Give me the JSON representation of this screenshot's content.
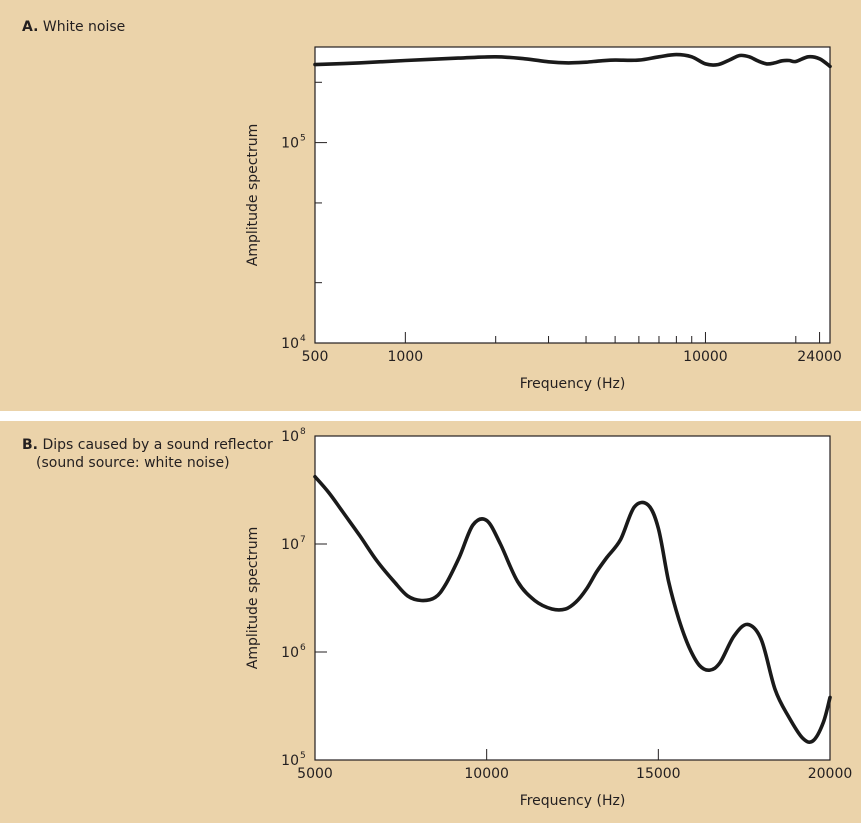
{
  "chart_data": [
    {
      "type": "line",
      "panel_letter": "A.",
      "title": "White noise",
      "xlabel": "Frequency (Hz)",
      "ylabel": "Amplitude spectrum",
      "x_scale": "log",
      "y_scale": "log",
      "xlim": [
        500,
        26000
      ],
      "ylim": [
        10000,
        300000
      ],
      "x_tick_labels": [
        "500",
        "1000",
        "10000",
        "24000"
      ],
      "x_ticks_labeled": [
        500,
        1000,
        10000,
        24000
      ],
      "x_ticks_minor": [
        2000,
        3000,
        4000,
        5000,
        6000,
        7000,
        8000,
        9000,
        20000
      ],
      "y_tick_labels": [
        {
          "base": "10",
          "exp": "5",
          "value": 100000
        },
        {
          "base": "10",
          "exp": "4",
          "value": 10000
        }
      ],
      "y_ticks_minor": [
        20000,
        50000,
        200000
      ],
      "series": [
        {
          "x": [
            500,
            700,
            1000,
            1500,
            2000,
            2500,
            3000,
            3500,
            4000,
            4500,
            5000,
            6000,
            7000,
            8000,
            9000,
            10000,
            11000,
            12000,
            13000,
            14000,
            15000,
            16000,
            17000,
            18000,
            19000,
            20000,
            22000,
            24000,
            26000
          ],
          "y": [
            245000,
            250000,
            257000,
            264000,
            268000,
            262000,
            253000,
            250000,
            252000,
            256000,
            258000,
            258000,
            268000,
            275000,
            268000,
            247000,
            245000,
            258000,
            272000,
            268000,
            255000,
            247000,
            250000,
            256000,
            257000,
            254000,
            268000,
            262000,
            240000
          ]
        }
      ]
    },
    {
      "type": "line",
      "panel_letter": "B.",
      "title": "Dips caused by a sound reflector",
      "subtitle": "(sound source: white noise)",
      "xlabel": "Frequency (Hz)",
      "ylabel": "Amplitude spectrum",
      "x_scale": "linear",
      "y_scale": "log",
      "xlim": [
        5000,
        20000
      ],
      "ylim": [
        100000,
        100000000
      ],
      "x_tick_labels": [
        "5000",
        "10000",
        "15000",
        "20000"
      ],
      "x_ticks_labeled": [
        5000,
        10000,
        15000,
        20000
      ],
      "y_tick_labels": [
        {
          "base": "10",
          "exp": "8",
          "value": 100000000
        },
        {
          "base": "10",
          "exp": "7",
          "value": 10000000
        },
        {
          "base": "10",
          "exp": "6",
          "value": 1000000
        },
        {
          "base": "10",
          "exp": "5",
          "value": 100000
        }
      ],
      "series": [
        {
          "x": [
            5000,
            5400,
            5800,
            6300,
            6800,
            7300,
            7700,
            8100,
            8500,
            8800,
            9200,
            9600,
            10000,
            10400,
            10900,
            11400,
            11900,
            12300,
            12600,
            12900,
            13200,
            13500,
            13900,
            14300,
            14700,
            15000,
            15300,
            15600,
            15900,
            16200,
            16500,
            16800,
            17200,
            17600,
            18000,
            18400,
            18800,
            19200,
            19500,
            19800,
            20000
          ],
          "y": [
            42000000,
            30000000,
            20000000,
            12000000,
            7000000,
            4500000,
            3300000,
            3000000,
            3200000,
            4200000,
            7500000,
            15000000,
            16500000,
            10000000,
            4500000,
            3000000,
            2500000,
            2500000,
            2900000,
            3800000,
            5500000,
            7500000,
            11000000,
            22000000,
            23000000,
            14000000,
            4500000,
            2000000,
            1100000,
            750000,
            680000,
            800000,
            1400000,
            1800000,
            1300000,
            450000,
            250000,
            160000,
            150000,
            220000,
            380000
          ]
        }
      ]
    }
  ]
}
